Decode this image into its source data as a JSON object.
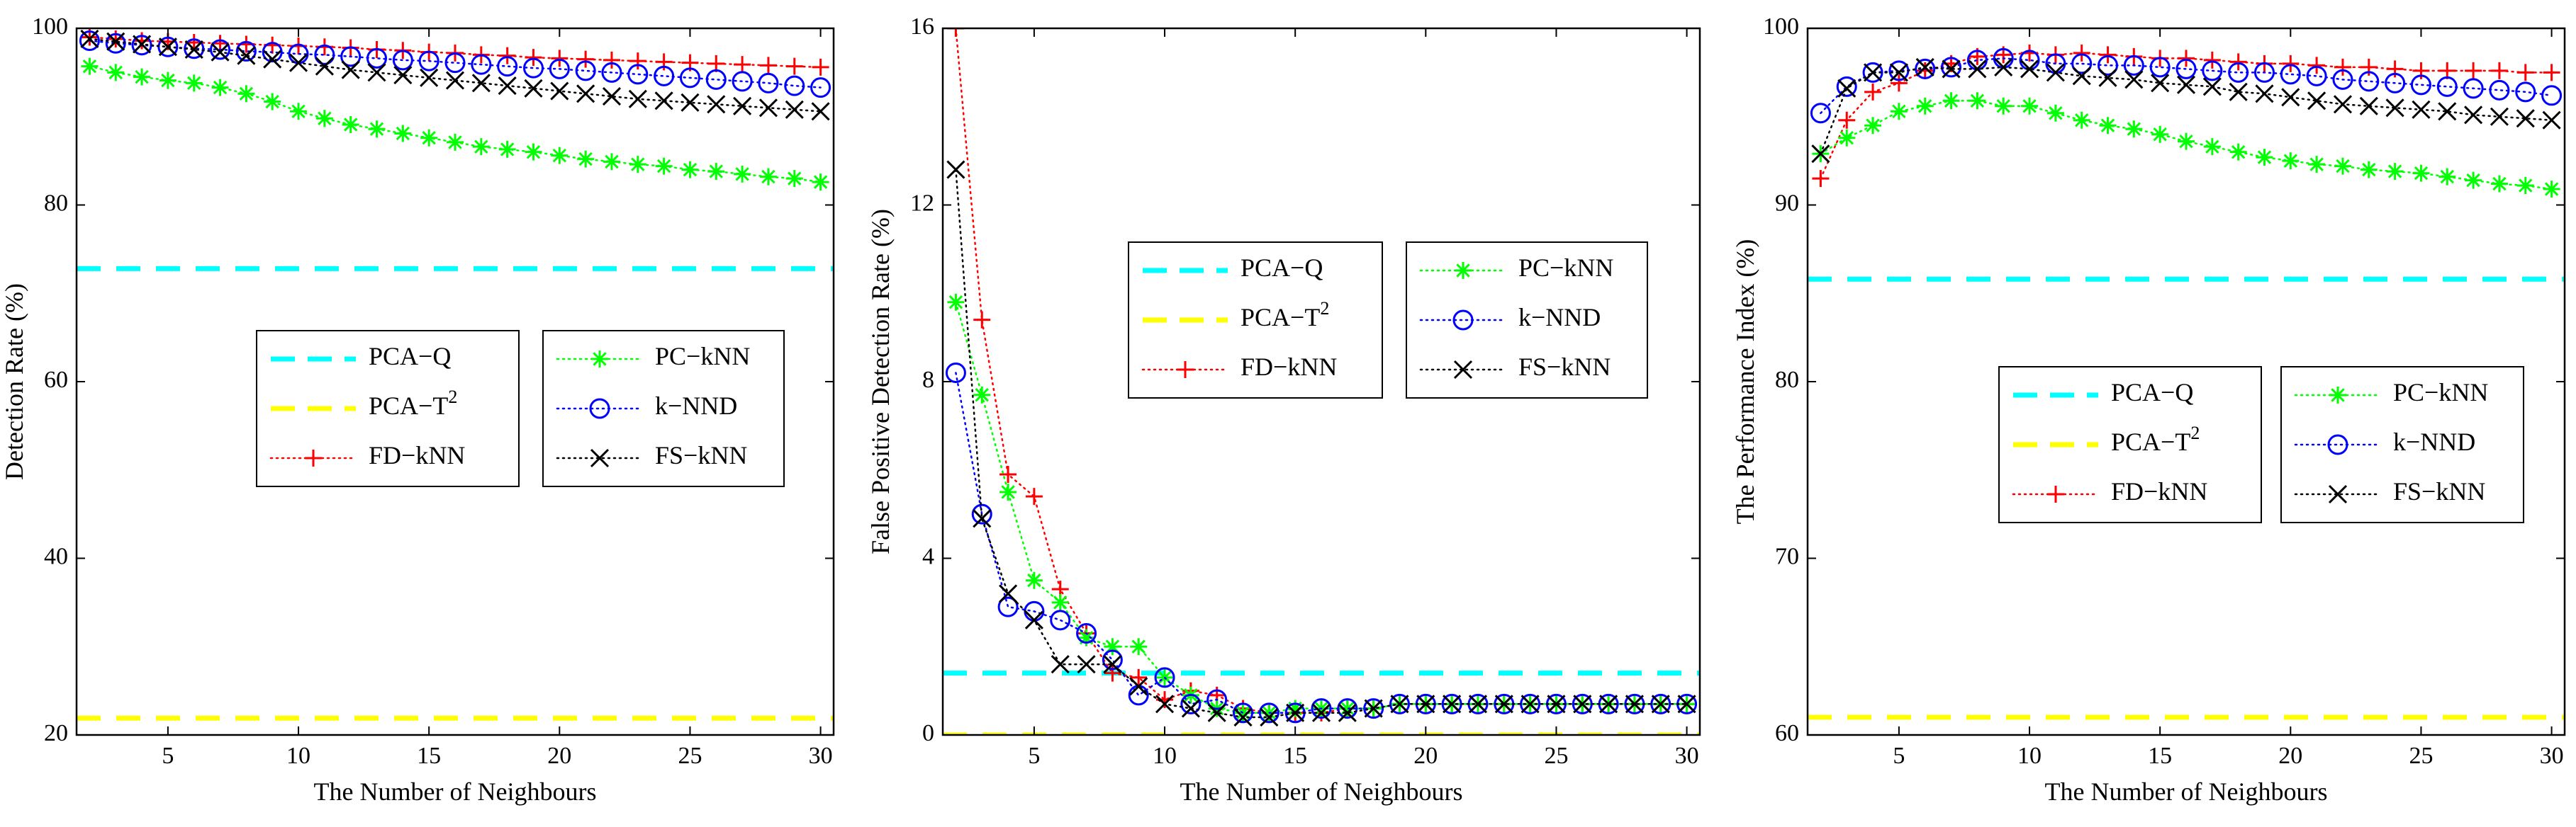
{
  "chart_data": [
    {
      "type": "line",
      "xlabel": "The Number of Neighbours",
      "ylabel": "Detection Rate (%)",
      "xlim": [
        1.5,
        30.5
      ],
      "ylim": [
        20,
        100
      ],
      "xticks": [
        5,
        10,
        15,
        20,
        25,
        30
      ],
      "yticks": [
        20,
        40,
        60,
        80,
        100
      ],
      "x": [
        2,
        3,
        4,
        5,
        6,
        7,
        8,
        9,
        10,
        11,
        12,
        13,
        14,
        15,
        16,
        17,
        18,
        19,
        20,
        21,
        22,
        23,
        24,
        25,
        26,
        27,
        28,
        29,
        30
      ],
      "legend_left": [
        "PCA−Q",
        "PCA−T",
        "FD−kNN"
      ],
      "legend_right": [
        "PC−kNN",
        "k−NND",
        "FS−kNN"
      ],
      "series": [
        {
          "name": "PCA−Q",
          "label_sup": "",
          "style": "dash",
          "color": "#00ffff",
          "constant": 72.8
        },
        {
          "name": "PCA−T",
          "label_sup": "2",
          "style": "dash",
          "color": "#ffff00",
          "constant": 21.9
        },
        {
          "name": "FD−kNN",
          "label_sup": "",
          "style": "plus",
          "color": "#ff0000",
          "values": [
            99.0,
            98.8,
            98.6,
            98.5,
            98.4,
            98.3,
            98.2,
            98.1,
            98.0,
            97.9,
            97.8,
            97.6,
            97.5,
            97.3,
            97.2,
            97.0,
            96.9,
            96.7,
            96.6,
            96.5,
            96.4,
            96.3,
            96.2,
            96.1,
            96.0,
            95.9,
            95.8,
            95.7,
            95.6
          ]
        },
        {
          "name": "PC−kNN",
          "label_sup": "",
          "style": "asterisk",
          "color": "#00ff00",
          "values": [
            95.7,
            95.0,
            94.5,
            94.1,
            93.8,
            93.3,
            92.6,
            91.7,
            90.6,
            89.8,
            89.1,
            88.6,
            88.1,
            87.6,
            87.1,
            86.6,
            86.3,
            86.0,
            85.6,
            85.2,
            84.9,
            84.6,
            84.4,
            84.0,
            83.8,
            83.5,
            83.2,
            83.0,
            82.6
          ]
        },
        {
          "name": "k−NND",
          "label_sup": "",
          "style": "circle",
          "color": "#0000ff",
          "values": [
            98.6,
            98.3,
            98.1,
            97.9,
            97.7,
            97.6,
            97.4,
            97.3,
            97.1,
            97.0,
            96.8,
            96.6,
            96.4,
            96.3,
            96.1,
            95.9,
            95.7,
            95.5,
            95.4,
            95.2,
            95.0,
            94.8,
            94.6,
            94.4,
            94.2,
            94.0,
            93.8,
            93.5,
            93.3
          ]
        },
        {
          "name": "FS−kNN",
          "label_sup": "",
          "style": "cross",
          "color": "#000000",
          "values": [
            98.8,
            98.5,
            98.2,
            97.9,
            97.6,
            97.3,
            96.9,
            96.5,
            96.1,
            95.7,
            95.3,
            95.0,
            94.7,
            94.4,
            94.1,
            93.8,
            93.5,
            93.2,
            92.9,
            92.6,
            92.3,
            92.0,
            91.8,
            91.6,
            91.4,
            91.2,
            91.0,
            90.8,
            90.6
          ]
        }
      ]
    },
    {
      "type": "line",
      "xlabel": "The Number of Neighbours",
      "ylabel": "False Positive Detection Rate (%)",
      "xlim": [
        1.5,
        30.5
      ],
      "ylim": [
        0,
        16
      ],
      "xticks": [
        5,
        10,
        15,
        20,
        25,
        30
      ],
      "yticks": [
        0,
        4,
        8,
        12,
        16
      ],
      "x": [
        2,
        3,
        4,
        5,
        6,
        7,
        8,
        9,
        10,
        11,
        12,
        13,
        14,
        15,
        16,
        17,
        18,
        19,
        20,
        21,
        22,
        23,
        24,
        25,
        26,
        27,
        28,
        29,
        30
      ],
      "legend_left": [
        "PCA−Q",
        "PCA−T",
        "FD−kNN"
      ],
      "legend_right": [
        "PC−kNN",
        "k−NND",
        "FS−kNN"
      ],
      "series": [
        {
          "name": "PCA−Q",
          "label_sup": "",
          "style": "dash",
          "color": "#00ffff",
          "constant": 1.4
        },
        {
          "name": "PCA−T",
          "label_sup": "2",
          "style": "dash",
          "color": "#ffff00",
          "constant": 0.0
        },
        {
          "name": "FD−kNN",
          "label_sup": "",
          "style": "plus",
          "color": "#ff0000",
          "values": [
            16.0,
            9.4,
            5.9,
            5.4,
            3.3,
            2.3,
            1.4,
            1.3,
            0.8,
            1.0,
            0.9,
            0.6,
            0.5,
            0.5,
            0.5,
            0.6,
            0.6,
            0.7,
            0.7,
            0.7,
            0.7,
            0.7,
            0.7,
            0.7,
            0.7,
            0.7,
            0.7,
            0.7,
            0.7
          ]
        },
        {
          "name": "PC−kNN",
          "label_sup": "",
          "style": "asterisk",
          "color": "#00ff00",
          "values": [
            9.8,
            7.7,
            5.5,
            3.5,
            3.0,
            2.2,
            2.0,
            2.0,
            1.3,
            0.9,
            0.6,
            0.5,
            0.5,
            0.6,
            0.6,
            0.6,
            0.6,
            0.7,
            0.7,
            0.7,
            0.7,
            0.7,
            0.7,
            0.7,
            0.7,
            0.7,
            0.7,
            0.7,
            0.7
          ]
        },
        {
          "name": "k−NND",
          "label_sup": "",
          "style": "circle",
          "color": "#0000ff",
          "values": [
            8.2,
            5.0,
            2.9,
            2.8,
            2.6,
            2.3,
            1.7,
            0.9,
            1.3,
            0.7,
            0.8,
            0.5,
            0.5,
            0.5,
            0.6,
            0.6,
            0.6,
            0.7,
            0.7,
            0.7,
            0.7,
            0.7,
            0.7,
            0.7,
            0.7,
            0.7,
            0.7,
            0.7,
            0.7
          ]
        },
        {
          "name": "FS−kNN",
          "label_sup": "",
          "style": "cross",
          "color": "#000000",
          "values": [
            12.8,
            4.9,
            3.2,
            2.6,
            1.6,
            1.6,
            1.6,
            1.1,
            0.7,
            0.6,
            0.5,
            0.4,
            0.4,
            0.5,
            0.5,
            0.5,
            0.6,
            0.7,
            0.7,
            0.7,
            0.7,
            0.7,
            0.7,
            0.7,
            0.7,
            0.7,
            0.7,
            0.7,
            0.7
          ]
        }
      ]
    },
    {
      "type": "line",
      "xlabel": "The Number of Neighbours",
      "ylabel": "The Performance Index (%)",
      "xlim": [
        1.5,
        30.5
      ],
      "ylim": [
        60,
        100
      ],
      "xticks": [
        5,
        10,
        15,
        20,
        25,
        30
      ],
      "yticks": [
        60,
        70,
        80,
        90,
        100
      ],
      "x": [
        2,
        3,
        4,
        5,
        6,
        7,
        8,
        9,
        10,
        11,
        12,
        13,
        14,
        15,
        16,
        17,
        18,
        19,
        20,
        21,
        22,
        23,
        24,
        25,
        26,
        27,
        28,
        29,
        30
      ],
      "legend_left": [
        "PCA−Q",
        "PCA−T",
        "FD−kNN"
      ],
      "legend_right": [
        "PC−kNN",
        "k−NND",
        "FS−kNN"
      ],
      "series": [
        {
          "name": "PCA−Q",
          "label_sup": "",
          "style": "dash",
          "color": "#00ffff",
          "constant": 85.8
        },
        {
          "name": "PCA−T",
          "label_sup": "2",
          "style": "dash",
          "color": "#ffff00",
          "constant": 61.0
        },
        {
          "name": "FD−kNN",
          "label_sup": "",
          "style": "plus",
          "color": "#ff0000",
          "values": [
            91.5,
            94.8,
            96.4,
            96.9,
            97.6,
            98.0,
            98.4,
            98.5,
            98.6,
            98.5,
            98.6,
            98.5,
            98.4,
            98.3,
            98.3,
            98.2,
            98.1,
            98.0,
            98.0,
            97.9,
            97.8,
            97.8,
            97.7,
            97.6,
            97.6,
            97.6,
            97.6,
            97.5,
            97.5
          ]
        },
        {
          "name": "PC−kNN",
          "label_sup": "",
          "style": "asterisk",
          "color": "#00ff00",
          "values": [
            92.9,
            93.8,
            94.5,
            95.3,
            95.6,
            95.9,
            95.9,
            95.6,
            95.6,
            95.2,
            94.8,
            94.5,
            94.3,
            94.0,
            93.6,
            93.3,
            93.0,
            92.7,
            92.5,
            92.3,
            92.2,
            92.0,
            91.9,
            91.8,
            91.6,
            91.4,
            91.2,
            91.1,
            90.9
          ]
        },
        {
          "name": "k−NND",
          "label_sup": "",
          "style": "circle",
          "color": "#0000ff",
          "values": [
            95.2,
            96.7,
            97.5,
            97.6,
            97.7,
            97.8,
            98.2,
            98.3,
            98.2,
            98.0,
            98.0,
            97.9,
            97.9,
            97.8,
            97.7,
            97.6,
            97.5,
            97.5,
            97.4,
            97.3,
            97.1,
            97.0,
            96.9,
            96.8,
            96.7,
            96.6,
            96.5,
            96.4,
            96.2
          ]
        },
        {
          "name": "FS−kNN",
          "label_sup": "",
          "style": "cross",
          "color": "#000000",
          "values": [
            92.9,
            96.6,
            97.5,
            97.5,
            97.8,
            97.7,
            97.7,
            97.8,
            97.7,
            97.5,
            97.3,
            97.2,
            97.1,
            96.9,
            96.8,
            96.7,
            96.4,
            96.3,
            96.1,
            95.9,
            95.7,
            95.6,
            95.5,
            95.4,
            95.3,
            95.1,
            95.0,
            94.9,
            94.8
          ]
        }
      ]
    }
  ]
}
